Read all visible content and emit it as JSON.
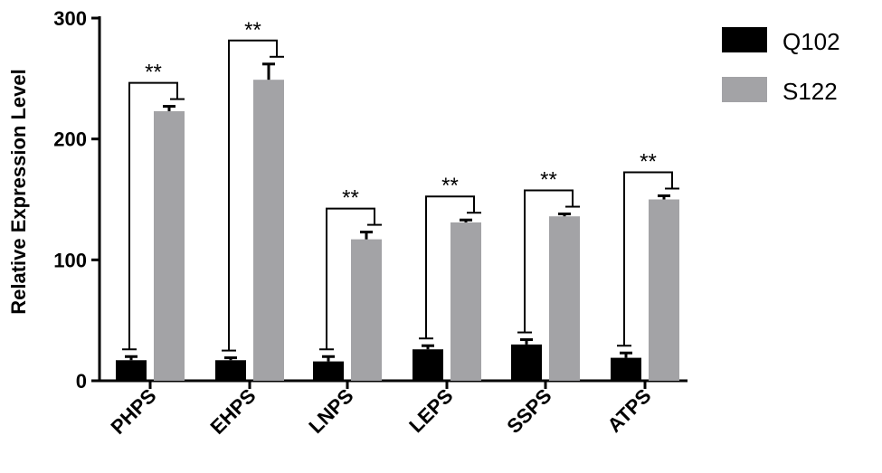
{
  "chart_data": {
    "type": "bar",
    "title": "",
    "xlabel": "",
    "ylabel": "Relative Expression Level",
    "ylim": [
      0,
      300
    ],
    "yticks": [
      0,
      100,
      200,
      300
    ],
    "categories": [
      "PHPS",
      "EHPS",
      "LNPS",
      "LEPS",
      "SSPS",
      "ATPS"
    ],
    "series": [
      {
        "name": "Q102",
        "color": "#000000",
        "values": [
          17,
          17,
          16,
          26,
          30,
          19
        ],
        "errors": [
          3,
          2,
          4,
          3,
          4,
          4
        ]
      },
      {
        "name": "S122",
        "color": "#a3a3a6",
        "values": [
          223,
          249,
          117,
          131,
          136,
          150
        ],
        "errors": [
          4,
          13,
          6,
          2,
          2,
          3
        ]
      }
    ],
    "significance": [
      {
        "category": "PHPS",
        "label": "**"
      },
      {
        "category": "EHPS",
        "label": "**"
      },
      {
        "category": "LNPS",
        "label": "**"
      },
      {
        "category": "LEPS",
        "label": "**"
      },
      {
        "category": "SSPS",
        "label": "**"
      },
      {
        "category": "ATPS",
        "label": "**"
      }
    ],
    "legend": {
      "position": "top-right"
    },
    "grid": false
  }
}
